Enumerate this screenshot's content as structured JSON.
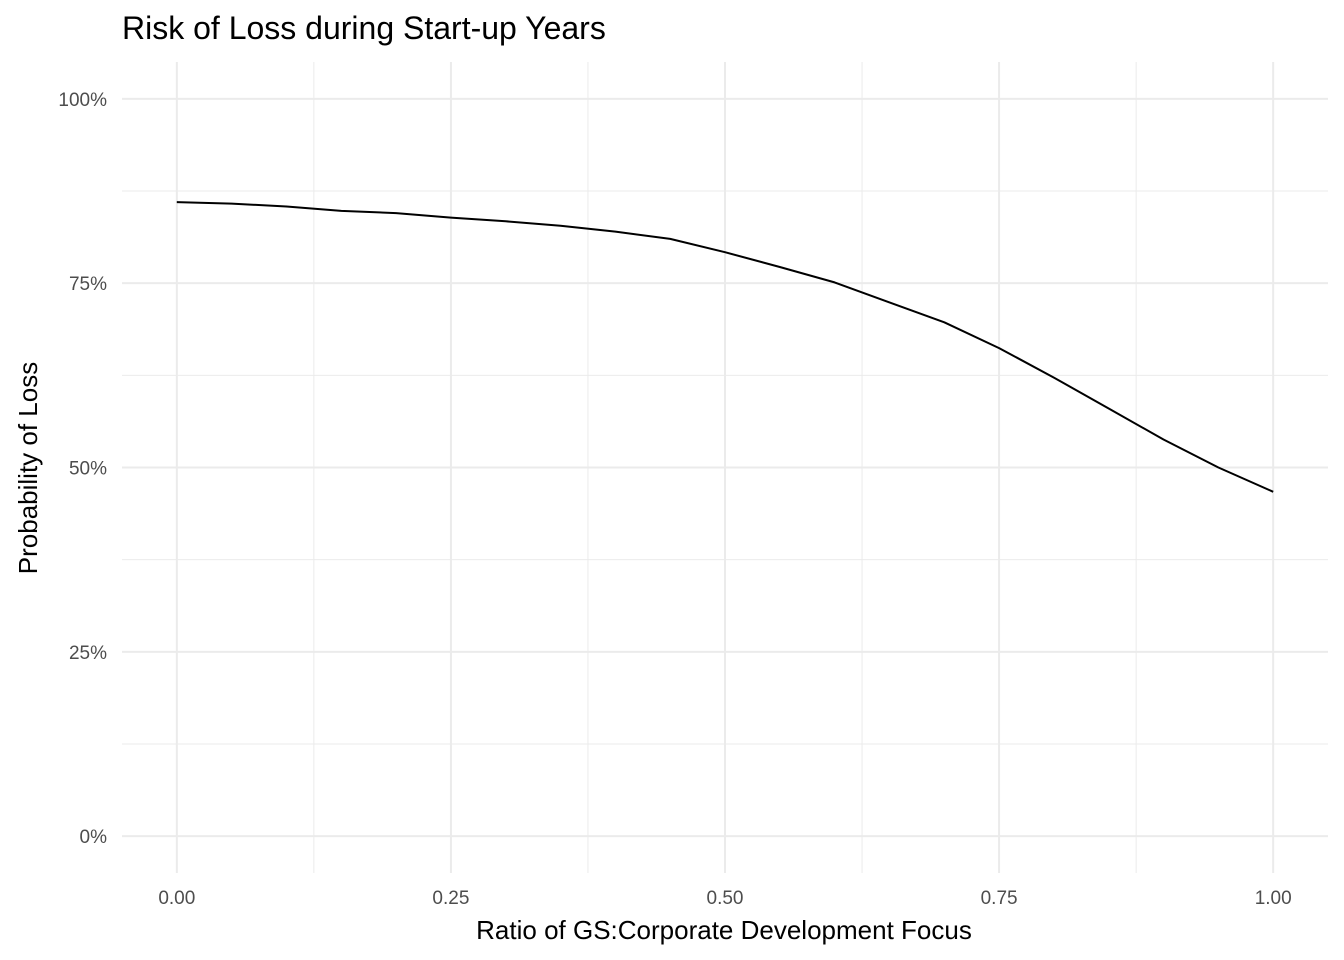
{
  "chart_data": {
    "type": "line",
    "title": "Risk of Loss during Start-up Years",
    "xlabel": "Ratio of GS:Corporate Development Focus",
    "ylabel": "Probability of Loss",
    "xlim": [
      -0.05,
      1.05
    ],
    "ylim": [
      -0.05,
      1.05
    ],
    "x_ticks": [
      0,
      0.25,
      0.5,
      0.75,
      1
    ],
    "x_tick_labels": [
      "0.00",
      "0.25",
      "0.50",
      "0.75",
      "1.00"
    ],
    "y_ticks": [
      0,
      0.25,
      0.5,
      0.75,
      1
    ],
    "y_tick_labels": [
      "0%",
      "25%",
      "50%",
      "75%",
      "100%"
    ],
    "grid": true,
    "line_color": "#000000",
    "grid_color": "#ebebeb",
    "series": [
      {
        "x": [
          0,
          0.05,
          0.1,
          0.15,
          0.2,
          0.25,
          0.3,
          0.35,
          0.4,
          0.45,
          0.5,
          0.55,
          0.6,
          0.65,
          0.7,
          0.75,
          0.8,
          0.85,
          0.9,
          0.95,
          1
        ],
        "values": [
          0.86,
          0.858,
          0.854,
          0.848,
          0.845,
          0.839,
          0.834,
          0.828,
          0.82,
          0.81,
          0.792,
          0.772,
          0.751,
          0.724,
          0.697,
          0.662,
          0.622,
          0.58,
          0.538,
          0.5,
          0.467
        ]
      }
    ]
  }
}
